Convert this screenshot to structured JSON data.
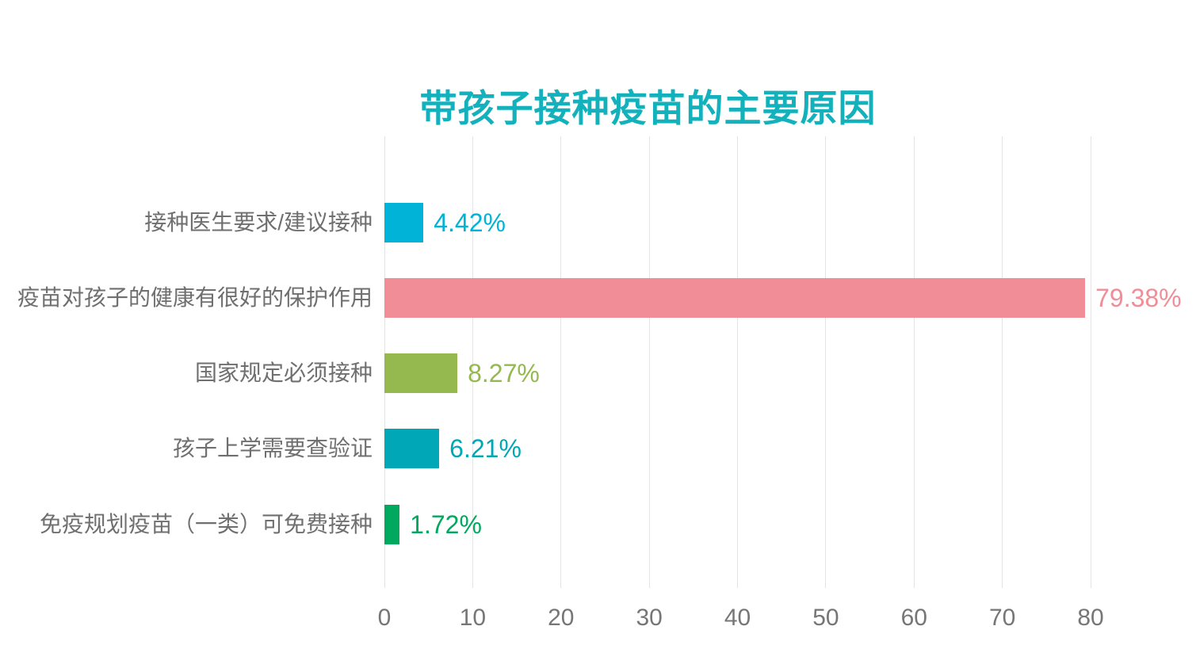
{
  "page": {
    "background": "#ffffff"
  },
  "chart_data": {
    "type": "bar",
    "orientation": "horizontal",
    "title": "带孩子接种疫苗的主要原因",
    "categories": [
      "接种医生要求/建议接种",
      "疫苗对孩子的健康有很好的保护作用",
      "国家规定必须接种",
      "孩子上学需要查验证",
      "免疫规划疫苗（一类）可免费接种"
    ],
    "values": [
      4.42,
      79.38,
      8.27,
      6.21,
      1.72
    ],
    "value_labels": [
      "4.42%",
      "79.38%",
      "8.27%",
      "6.21%",
      "1.72%"
    ],
    "bar_colors": [
      "#00b3d7",
      "#f08d96",
      "#95b84f",
      "#00a7b6",
      "#00a95e"
    ],
    "xlabel": "",
    "ylabel": "",
    "xlim": [
      0,
      80
    ],
    "x_ticks": [
      "0",
      "10",
      "20",
      "30",
      "40",
      "50",
      "60",
      "70",
      "80"
    ],
    "grid": "vertical-gridlines-only",
    "legend": "none"
  },
  "colors": {
    "title": "#12b1bc",
    "category_label": "#6f6f6f",
    "tick_label": "#767676",
    "gridline": "#e4e4e4",
    "background": "#ffffff"
  }
}
